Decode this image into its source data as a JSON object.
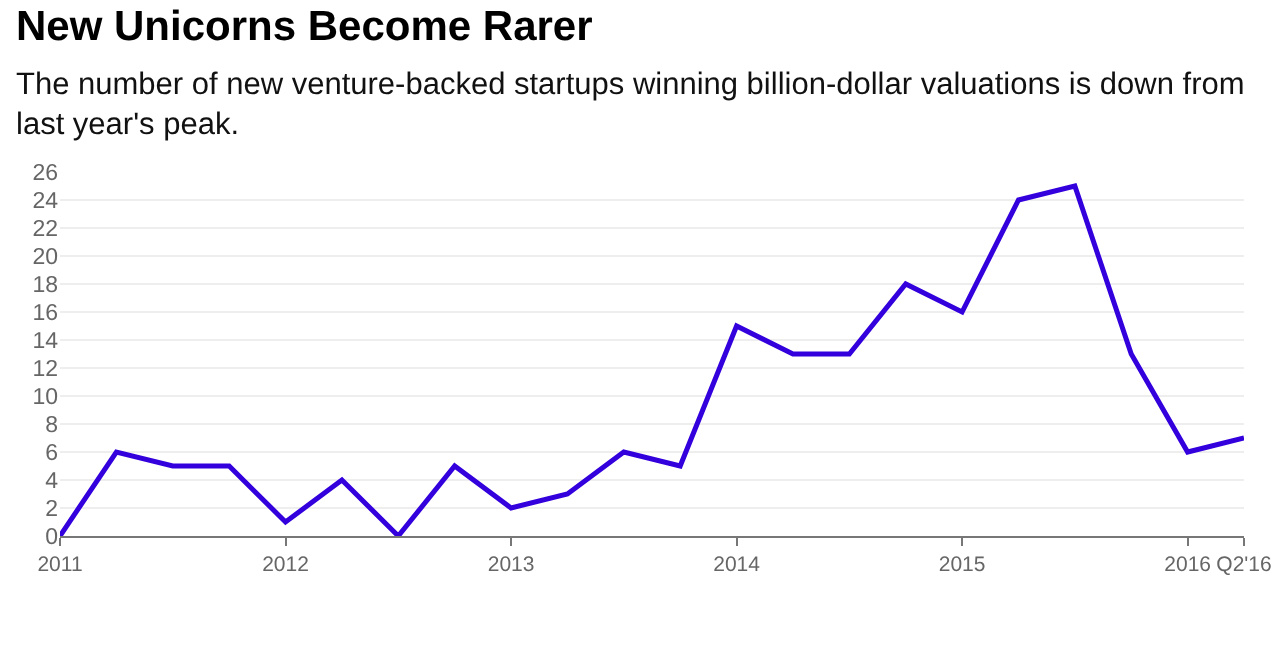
{
  "chart_data": {
    "type": "line",
    "title": "New Unicorns Become Rarer",
    "subtitle": "The number of new venture-backed startups winning billion-dollar valuations is down from last year's peak.",
    "x": [
      2011,
      2011.25,
      2011.5,
      2011.75,
      2012,
      2012.25,
      2012.5,
      2012.75,
      2013,
      2013.25,
      2013.5,
      2013.75,
      2014,
      2014.25,
      2014.5,
      2014.75,
      2015,
      2015.25,
      2015.5,
      2015.75,
      2016,
      2016.25
    ],
    "series": [
      {
        "color": "#3300dd",
        "values": [
          0,
          6,
          5,
          5,
          1,
          4,
          0,
          5,
          2,
          3,
          6,
          5,
          15,
          13,
          13,
          18,
          16,
          24,
          25,
          13,
          6,
          7
        ]
      }
    ],
    "xlim": [
      2011,
      2016.25
    ],
    "xticks": [
      2011,
      2012,
      2013,
      2014,
      2015,
      2016,
      {
        "value": 2016.25,
        "label": "Q2'16"
      }
    ],
    "ylim": [
      0,
      26
    ],
    "yticks": [
      0,
      2,
      4,
      6,
      8,
      10,
      12,
      14,
      16,
      18,
      20,
      22,
      24,
      26
    ],
    "grid": "y",
    "marker": "none",
    "line_style": "solid"
  }
}
